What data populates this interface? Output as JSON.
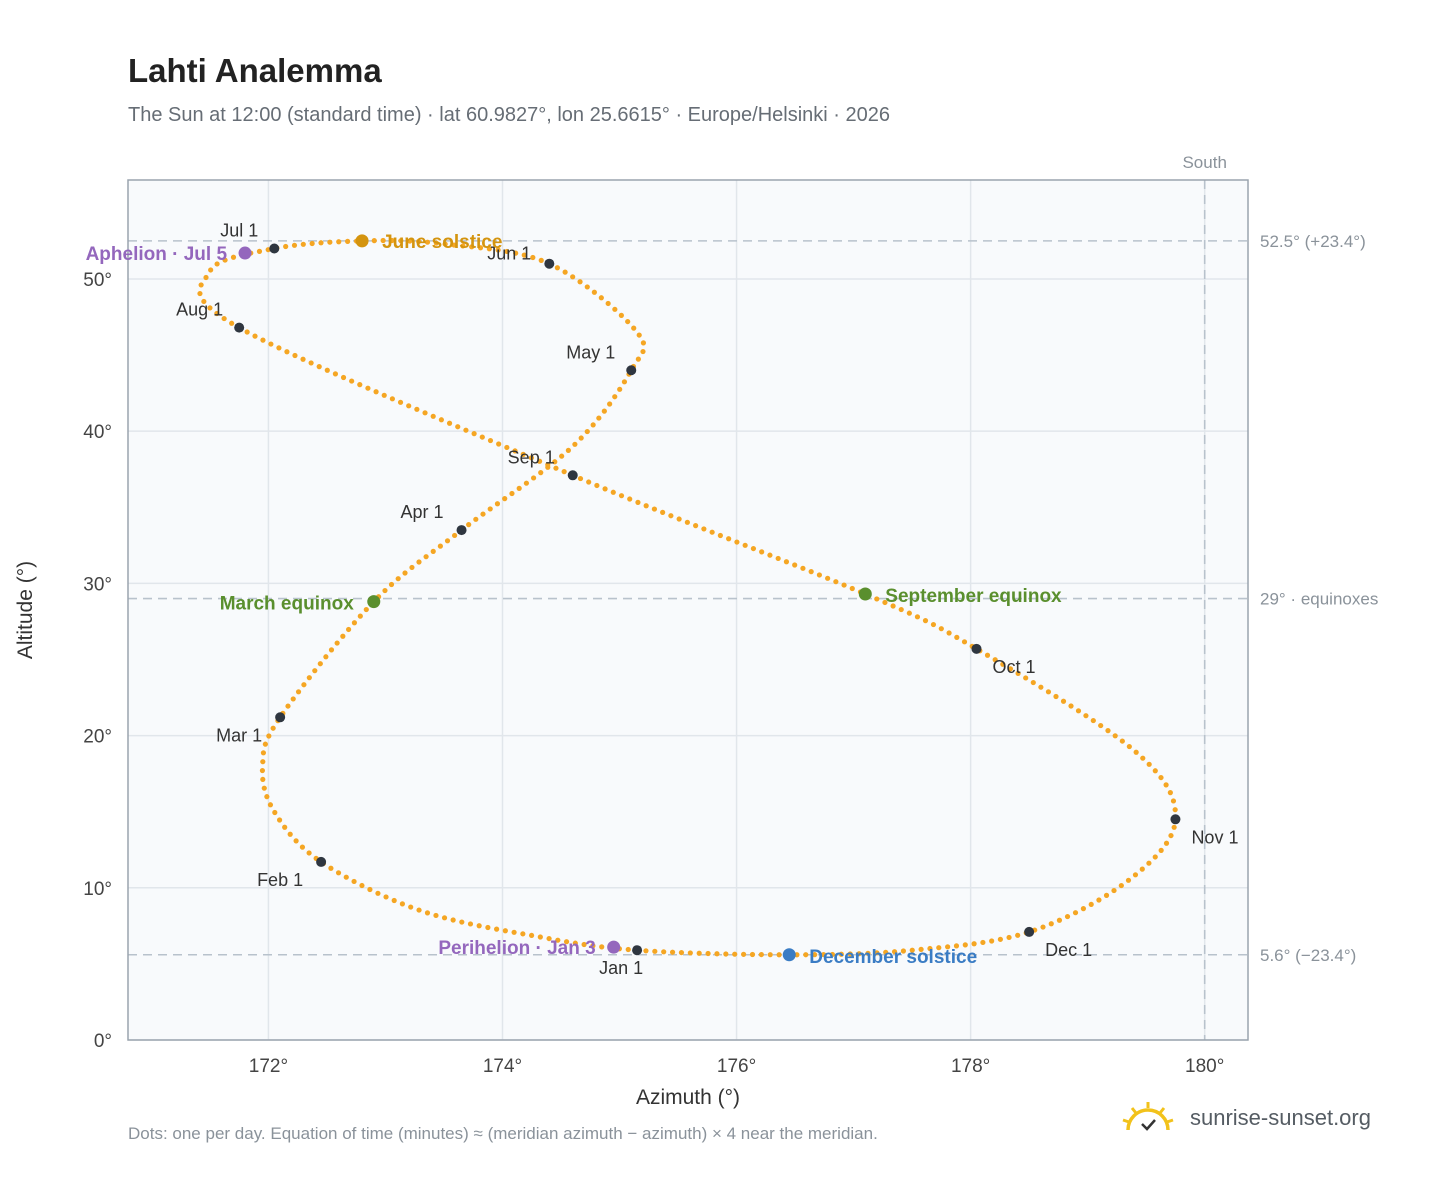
{
  "header": {
    "title": "Lahti Analemma",
    "subtitle": "The Sun at 12:00 (standard time) · lat 60.9827°, lon 25.6615° · Europe/Helsinki · 2026"
  },
  "footer": {
    "note": "Dots: one per day. Equation of time (minutes) ≈ (meridian azimuth − azimuth) × 4 near the meridian.",
    "brand": "sunrise-sunset.org",
    "brand_icon": "sun-logo-icon"
  },
  "chart_data": {
    "type": "scatter",
    "title": "Lahti Analemma",
    "xlabel": "Azimuth (°)",
    "ylabel": "Altitude (°)",
    "xlim": [
      170.8,
      180.37
    ],
    "ylim": [
      0,
      56.5
    ],
    "x_ticks": [
      172,
      174,
      176,
      178,
      180
    ],
    "x_tick_labels": [
      "172°",
      "174°",
      "176°",
      "178°",
      "180°"
    ],
    "y_ticks": [
      0,
      10,
      20,
      30,
      40,
      50
    ],
    "y_tick_labels": [
      "0°",
      "10°",
      "20°",
      "30°",
      "40°",
      "50°"
    ],
    "grid": true,
    "colors": {
      "path": "#f5a623",
      "month_marker": "#2f3640",
      "equinox": "#5a8f2e",
      "june_solstice": "#d4940f",
      "december_solstice": "#3a7cc4",
      "apsis": "#9467bd",
      "reference_line": "#b8c2cc",
      "plot_bg": "#f8fafc"
    },
    "reference_lines": [
      {
        "axis": "y",
        "value": 52.5,
        "label": "52.5° (+23.4°)"
      },
      {
        "axis": "y",
        "value": 29,
        "label": "29° · equinoxes"
      },
      {
        "axis": "y",
        "value": 5.6,
        "label": "5.6° (−23.4°)"
      },
      {
        "axis": "x",
        "value": 180,
        "label": "South"
      }
    ],
    "month_markers": [
      {
        "label": "Jan 1",
        "az": 175.15,
        "alt": 5.9
      },
      {
        "label": "Feb 1",
        "az": 172.45,
        "alt": 11.7
      },
      {
        "label": "Mar 1",
        "az": 172.1,
        "alt": 21.2
      },
      {
        "label": "Apr 1",
        "az": 173.65,
        "alt": 33.5
      },
      {
        "label": "May 1",
        "az": 175.1,
        "alt": 44.0
      },
      {
        "label": "Jun 1",
        "az": 174.4,
        "alt": 51.0
      },
      {
        "label": "Jul 1",
        "az": 172.05,
        "alt": 52.0
      },
      {
        "label": "Aug 1",
        "az": 171.75,
        "alt": 46.8
      },
      {
        "label": "Sep 1",
        "az": 174.6,
        "alt": 37.1
      },
      {
        "label": "Oct 1",
        "az": 178.05,
        "alt": 25.7
      },
      {
        "label": "Nov 1",
        "az": 179.75,
        "alt": 14.5
      },
      {
        "label": "Dec 1",
        "az": 178.5,
        "alt": 7.1
      }
    ],
    "events": [
      {
        "label": "June solstice",
        "az": 172.8,
        "alt": 52.5,
        "kind": "june_solstice"
      },
      {
        "label": "December solstice",
        "az": 176.45,
        "alt": 5.6,
        "kind": "december_solstice"
      },
      {
        "label": "March equinox",
        "az": 172.9,
        "alt": 28.8,
        "kind": "equinox"
      },
      {
        "label": "September equinox",
        "az": 177.1,
        "alt": 29.3,
        "kind": "equinox"
      },
      {
        "label": "Aphelion · Jul 5",
        "az": 171.8,
        "alt": 51.7,
        "kind": "apsis"
      },
      {
        "label": "Perihelion · Jan 3",
        "az": 174.95,
        "alt": 6.1,
        "kind": "apsis"
      }
    ],
    "path_points_approx": [
      [
        175.15,
        5.9
      ],
      [
        174.3,
        6.8
      ],
      [
        173.3,
        8.5
      ],
      [
        172.45,
        11.7
      ],
      [
        172.05,
        15.0
      ],
      [
        171.95,
        18.0
      ],
      [
        172.1,
        21.2
      ],
      [
        172.9,
        28.8
      ],
      [
        173.65,
        33.5
      ],
      [
        174.6,
        39.0
      ],
      [
        175.1,
        44.0
      ],
      [
        175.15,
        46.5
      ],
      [
        174.4,
        51.0
      ],
      [
        173.5,
        52.3
      ],
      [
        172.8,
        52.5
      ],
      [
        172.05,
        52.0
      ],
      [
        171.5,
        50.5
      ],
      [
        171.75,
        46.8
      ],
      [
        174.6,
        37.1
      ],
      [
        177.1,
        29.3
      ],
      [
        178.05,
        25.7
      ],
      [
        179.4,
        19.0
      ],
      [
        179.75,
        14.5
      ],
      [
        179.35,
        10.5
      ],
      [
        178.5,
        7.1
      ],
      [
        177.5,
        5.9
      ],
      [
        176.45,
        5.6
      ]
    ]
  }
}
